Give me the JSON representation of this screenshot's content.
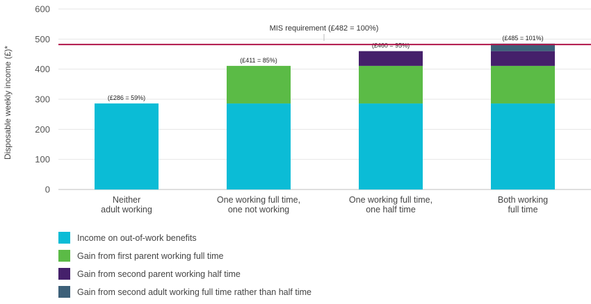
{
  "chart_data": {
    "type": "bar",
    "stacked": true,
    "categories": [
      [
        "Neither",
        "adult working"
      ],
      [
        "One working full time,",
        "one not working"
      ],
      [
        "One working full time,",
        "one half time"
      ],
      [
        "Both working",
        "full time"
      ]
    ],
    "series": [
      {
        "name": "Income on out-of-work benefits",
        "color": "#0bbcd6",
        "values": [
          286,
          286,
          286,
          286
        ]
      },
      {
        "name": "Gain from first parent working full time",
        "color": "#5bbb46",
        "values": [
          0,
          125,
          125,
          125
        ]
      },
      {
        "name": "Gain from second parent working half time",
        "color": "#45206b",
        "values": [
          0,
          0,
          49,
          49
        ]
      },
      {
        "name": "Gain from second adult working full time rather than half time",
        "color": "#3d6079",
        "values": [
          0,
          0,
          0,
          25
        ]
      }
    ],
    "data_labels": [
      "(£286 = 59%)",
      "(£411 = 85%)",
      "(£460 = 95%)",
      "(£485 = 101%)"
    ],
    "reference_line": {
      "value": 482,
      "label": "MIS requirement (£482 = 100%)",
      "color": "#b0154a"
    },
    "ylabel": "Disposable weekly income (£)*",
    "xlabel": "",
    "ylim": [
      0,
      600
    ],
    "yticks": [
      0,
      100,
      200,
      300,
      400,
      500,
      600
    ],
    "grid": true,
    "legend_position": "bottom-left"
  }
}
